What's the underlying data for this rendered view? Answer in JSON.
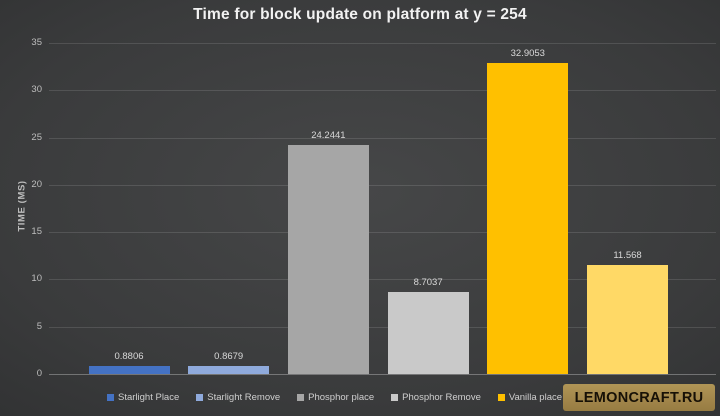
{
  "title": "Time for block update on platform at y = 254",
  "watermark_text": "LEMONCRAFT.RU",
  "colors": {
    "background_center": "#464748",
    "background_edge": "#1f2021",
    "title_text": "#f2f2f2",
    "tick_text": "#bdbdbd",
    "value_label_text": "#d9d9d9",
    "legend_text": "#cfcfcf",
    "gridline": "rgba(255,255,255,0.12)",
    "watermark_background": "#a1854a",
    "watermark_text": "#161006"
  },
  "chart_data": {
    "type": "bar",
    "title": "Time for block update on platform at y = 254",
    "xlabel": "",
    "ylabel": "TIME (MS)",
    "ylim": [
      0,
      35
    ],
    "yticks": [
      0,
      5,
      10,
      15,
      20,
      25,
      30,
      35
    ],
    "grid": true,
    "legend_position": "bottom",
    "bars": [
      {
        "label": "Starlight Place",
        "value": 0.8806,
        "value_label": "0.8806",
        "color": "#4472C4"
      },
      {
        "label": "Starlight Remove",
        "value": 0.8679,
        "value_label": "0.8679",
        "color": "#8FAADC"
      },
      {
        "label": "Phosphor place",
        "value": 24.2441,
        "value_label": "24.2441",
        "color": "#A6A6A6"
      },
      {
        "label": "Phosphor Remove",
        "value": 8.7037,
        "value_label": "8.7037",
        "color": "#C9C9C9"
      },
      {
        "label": "Vanilla place",
        "value": 32.9053,
        "value_label": "32.9053",
        "color": "#FFC000"
      },
      {
        "label": "",
        "value": 11.568,
        "value_label": "11.568",
        "color": "#FFD966"
      }
    ]
  }
}
